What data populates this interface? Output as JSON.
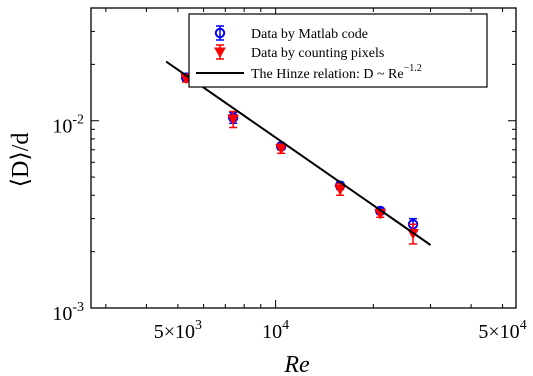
{
  "chart_data": {
    "type": "scatter",
    "xlabel": "Re",
    "ylabel": "⟨D⟩/d",
    "x_scale": "log",
    "y_scale": "log",
    "xlim": [
      2700,
      55000
    ],
    "ylim": [
      0.001,
      0.04
    ],
    "grid": false,
    "legend_position": "top-right",
    "x_ticks": [
      {
        "value": 5000,
        "label": "5×10",
        "exp": "3"
      },
      {
        "value": 10000,
        "label": "10",
        "exp": "4"
      },
      {
        "value": 50000,
        "label": "5×10",
        "exp": "4"
      }
    ],
    "y_ticks": [
      {
        "value": 0.001,
        "label": "10",
        "exp": "-3"
      },
      {
        "value": 0.01,
        "label": "10",
        "exp": "-2"
      }
    ],
    "series": [
      {
        "name": "Data by Matlab code",
        "marker": "circle",
        "color": "#0000ff",
        "x": [
          5300,
          7400,
          10400,
          15800,
          21000,
          26500
        ],
        "y": [
          0.017,
          0.0104,
          0.0073,
          0.0045,
          0.0033,
          0.0028
        ],
        "err": [
          0.0007,
          0.0007,
          0.0003,
          0.0002,
          0.00012,
          0.0002
        ]
      },
      {
        "name": "Data by counting pixels",
        "marker": "triangle-down",
        "color": "#ff0000",
        "x": [
          5300,
          7400,
          10400,
          15800,
          21000,
          26500
        ],
        "y": [
          0.0169,
          0.0102,
          0.0071,
          0.0043,
          0.0032,
          0.0025
        ],
        "err": [
          0.0008,
          0.001,
          0.0004,
          0.0003,
          0.00015,
          0.0003
        ]
      },
      {
        "name": "The Hinze relation: D ~ Re",
        "name_exp": "−1.2",
        "type": "line",
        "color": "#000000",
        "x": [
          4600,
          30000
        ],
        "y": [
          0.0207,
          0.00217
        ]
      }
    ]
  }
}
